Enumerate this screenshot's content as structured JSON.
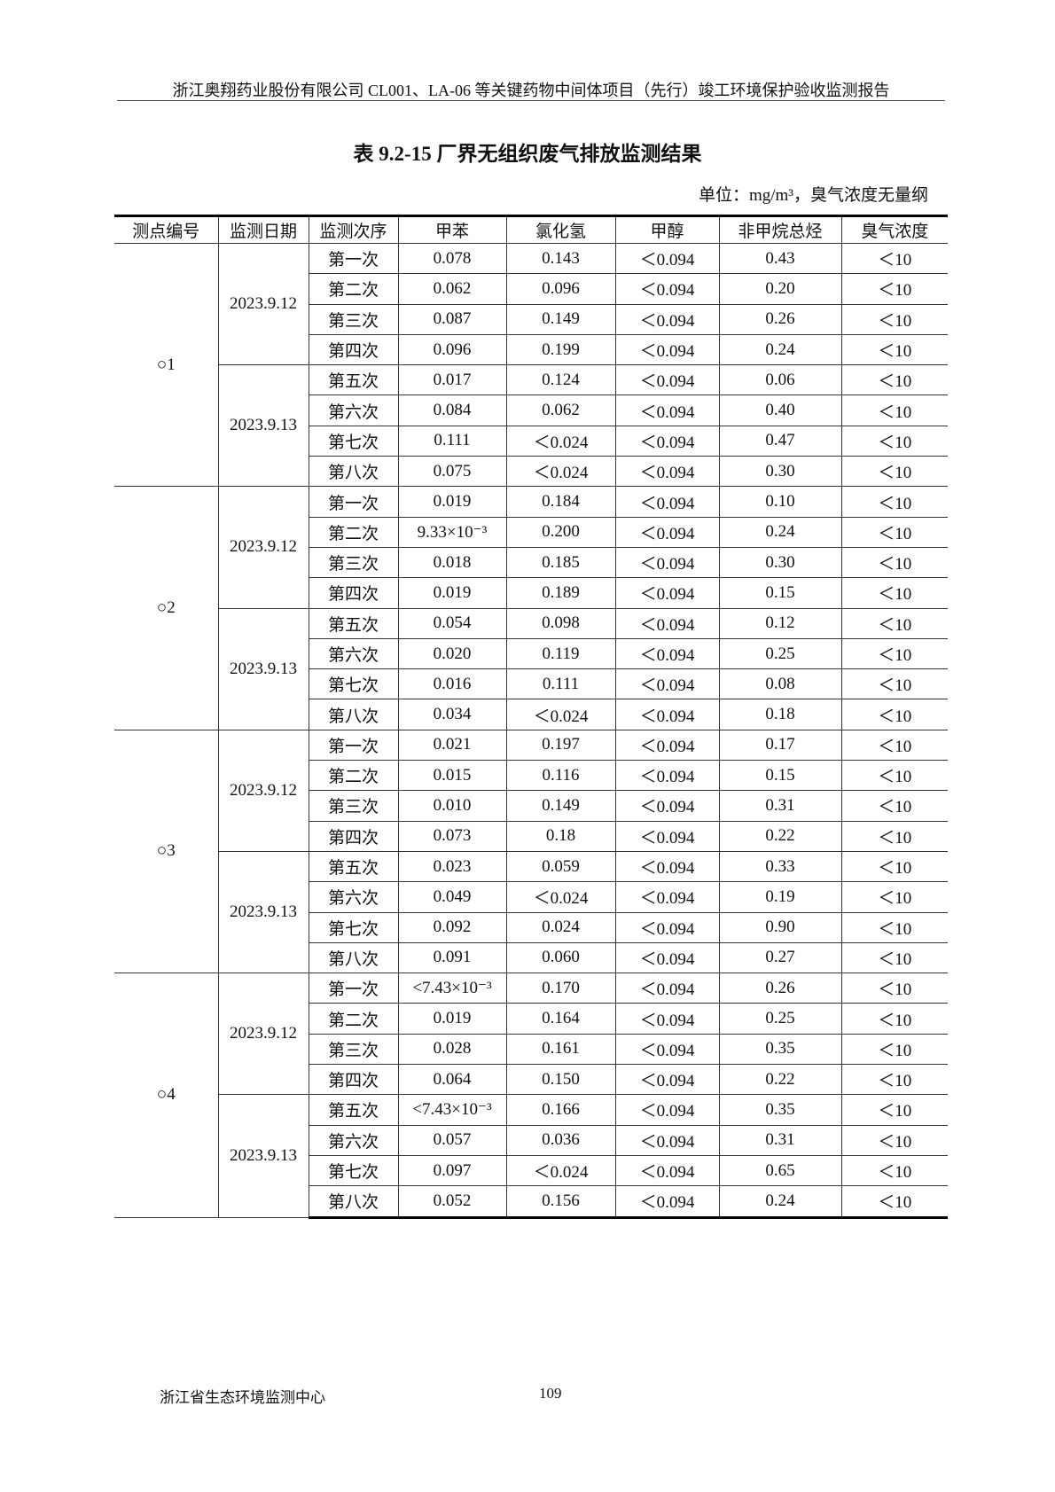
{
  "header": "浙江奥翔药业股份有限公司 CL001、LA-06 等关键药物中间体项目（先行）竣工环境保护验收监测报告",
  "title": "表 9.2-15  厂界无组织废气排放监测结果",
  "unit": "单位：mg/m³，臭气浓度无量纲",
  "columns": [
    "测点编号",
    "监测日期",
    "监测次序",
    "甲苯",
    "氯化氢",
    "甲醇",
    "非甲烷总烃",
    "臭气浓度"
  ],
  "order_labels": [
    "第一次",
    "第二次",
    "第三次",
    "第四次",
    "第五次",
    "第六次",
    "第七次",
    "第八次"
  ],
  "points": [
    {
      "name": "○1",
      "dates": [
        {
          "date": "2023.9.12",
          "rows": [
            [
              "0.078",
              "0.143",
              "＜0.094",
              "0.43",
              "＜10"
            ],
            [
              "0.062",
              "0.096",
              "＜0.094",
              "0.20",
              "＜10"
            ],
            [
              "0.087",
              "0.149",
              "＜0.094",
              "0.26",
              "＜10"
            ],
            [
              "0.096",
              "0.199",
              "＜0.094",
              "0.24",
              "＜10"
            ]
          ]
        },
        {
          "date": "2023.9.13",
          "rows": [
            [
              "0.017",
              "0.124",
              "＜0.094",
              "0.06",
              "＜10"
            ],
            [
              "0.084",
              "0.062",
              "＜0.094",
              "0.40",
              "＜10"
            ],
            [
              "0.111",
              "＜0.024",
              "＜0.094",
              "0.47",
              "＜10"
            ],
            [
              "0.075",
              "＜0.024",
              "＜0.094",
              "0.30",
              "＜10"
            ]
          ]
        }
      ]
    },
    {
      "name": "○2",
      "dates": [
        {
          "date": "2023.9.12",
          "rows": [
            [
              "0.019",
              "0.184",
              "＜0.094",
              "0.10",
              "＜10"
            ],
            [
              "9.33×10⁻³",
              "0.200",
              "＜0.094",
              "0.24",
              "＜10"
            ],
            [
              "0.018",
              "0.185",
              "＜0.094",
              "0.30",
              "＜10"
            ],
            [
              "0.019",
              "0.189",
              "＜0.094",
              "0.15",
              "＜10"
            ]
          ]
        },
        {
          "date": "2023.9.13",
          "rows": [
            [
              "0.054",
              "0.098",
              "＜0.094",
              "0.12",
              "＜10"
            ],
            [
              "0.020",
              "0.119",
              "＜0.094",
              "0.25",
              "＜10"
            ],
            [
              "0.016",
              "0.111",
              "＜0.094",
              "0.08",
              "＜10"
            ],
            [
              "0.034",
              "＜0.024",
              "＜0.094",
              "0.18",
              "＜10"
            ]
          ]
        }
      ]
    },
    {
      "name": "○3",
      "dates": [
        {
          "date": "2023.9.12",
          "rows": [
            [
              "0.021",
              "0.197",
              "＜0.094",
              "0.17",
              "＜10"
            ],
            [
              "0.015",
              "0.116",
              "＜0.094",
              "0.15",
              "＜10"
            ],
            [
              "0.010",
              "0.149",
              "＜0.094",
              "0.31",
              "＜10"
            ],
            [
              "0.073",
              "0.18",
              "＜0.094",
              "0.22",
              "＜10"
            ]
          ]
        },
        {
          "date": "2023.9.13",
          "rows": [
            [
              "0.023",
              "0.059",
              "＜0.094",
              "0.33",
              "＜10"
            ],
            [
              "0.049",
              "＜0.024",
              "＜0.094",
              "0.19",
              "＜10"
            ],
            [
              "0.092",
              "0.024",
              "＜0.094",
              "0.90",
              "＜10"
            ],
            [
              "0.091",
              "0.060",
              "＜0.094",
              "0.27",
              "＜10"
            ]
          ]
        }
      ]
    },
    {
      "name": "○4",
      "dates": [
        {
          "date": "2023.9.12",
          "rows": [
            [
              "<7.43×10⁻³",
              "0.170",
              "＜0.094",
              "0.26",
              "＜10"
            ],
            [
              "0.019",
              "0.164",
              "＜0.094",
              "0.25",
              "＜10"
            ],
            [
              "0.028",
              "0.161",
              "＜0.094",
              "0.35",
              "＜10"
            ],
            [
              "0.064",
              "0.150",
              "＜0.094",
              "0.22",
              "＜10"
            ]
          ]
        },
        {
          "date": "2023.9.13",
          "rows": [
            [
              "<7.43×10⁻³",
              "0.166",
              "＜0.094",
              "0.35",
              "＜10"
            ],
            [
              "0.057",
              "0.036",
              "＜0.094",
              "0.31",
              "＜10"
            ],
            [
              "0.097",
              "＜0.024",
              "＜0.094",
              "0.65",
              "＜10"
            ],
            [
              "0.052",
              "0.156",
              "＜0.094",
              "0.24",
              "＜10"
            ]
          ]
        }
      ]
    }
  ],
  "footer": {
    "org": "浙江省生态环境监测中心",
    "page": "109"
  }
}
